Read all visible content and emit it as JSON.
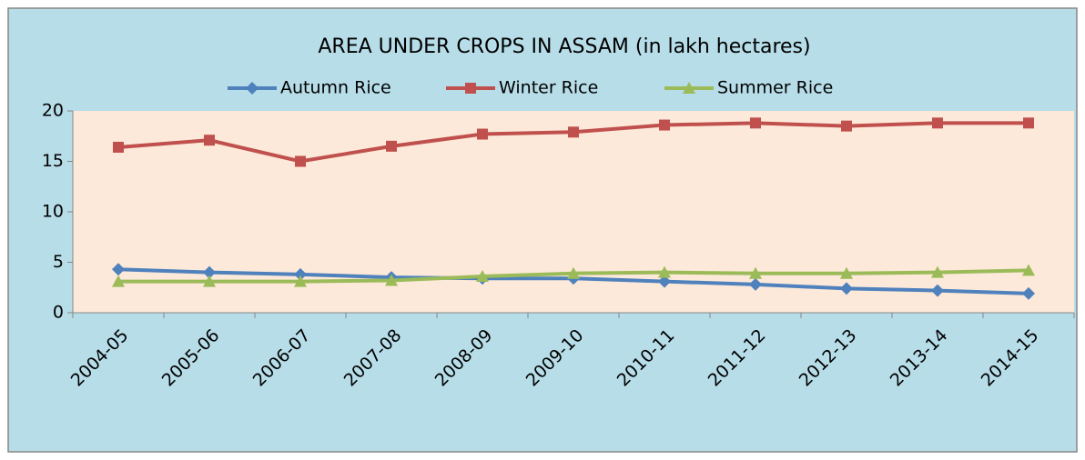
{
  "chart_data": {
    "type": "line",
    "title": "AREA UNDER CROPS IN ASSAM (in lakh hectares)",
    "categories": [
      "2004-05",
      "2005-06",
      "2006-07",
      "2007-08",
      "2008-09",
      "2009-10",
      "2010-11",
      "2011-12",
      "2012-13",
      "2013-14",
      "2014-15"
    ],
    "series": [
      {
        "name": "Autumn Rice",
        "color": "#4f81bd",
        "marker": "diamond",
        "values": [
          4.3,
          4.0,
          3.8,
          3.5,
          3.4,
          3.4,
          3.1,
          2.8,
          2.4,
          2.2,
          1.9
        ]
      },
      {
        "name": "Winter Rice",
        "color": "#c0504d",
        "marker": "square",
        "values": [
          16.4,
          17.1,
          15.0,
          16.5,
          17.7,
          17.9,
          18.6,
          18.8,
          18.5,
          18.8,
          18.8
        ]
      },
      {
        "name": "Summer Rice",
        "color": "#9bbb59",
        "marker": "triangle",
        "values": [
          3.1,
          3.1,
          3.1,
          3.2,
          3.6,
          3.9,
          4.0,
          3.9,
          3.9,
          4.0,
          4.2
        ]
      }
    ],
    "ylim": [
      0,
      20
    ],
    "yticks": [
      0,
      5,
      10,
      15,
      20
    ],
    "grid": false,
    "legend": "top"
  }
}
